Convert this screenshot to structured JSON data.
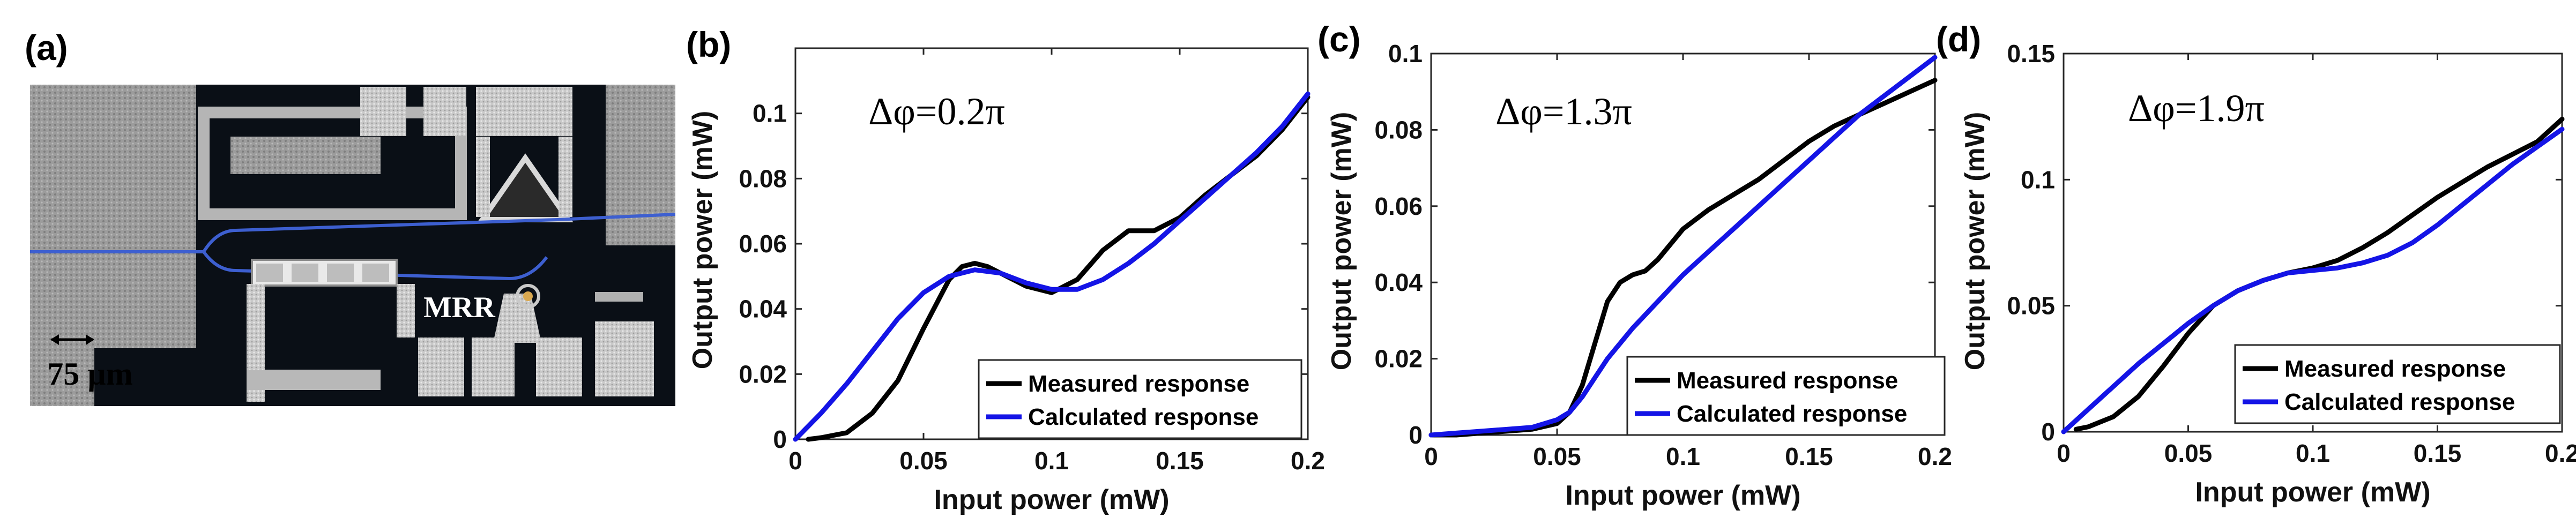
{
  "figure": {
    "panels": [
      {
        "id": "a",
        "label": "(a)",
        "type": "micrograph"
      },
      {
        "id": "b",
        "label": "(b)",
        "type": "chart",
        "chart_index": 0
      },
      {
        "id": "c",
        "label": "(c)",
        "type": "chart",
        "chart_index": 1
      },
      {
        "id": "d",
        "label": "(d)",
        "type": "chart",
        "chart_index": 2
      }
    ],
    "micrograph": {
      "mrr_label": "MRR",
      "scale_bar_label": "75 µm"
    }
  },
  "colors": {
    "measured": "#000000",
    "calculated": "#1414e6",
    "chip_dark": "#0a0f16",
    "chip_metal": "#a8a8a8",
    "waveguide": "#3d5fd0"
  },
  "chart_data": [
    {
      "type": "line",
      "annotation": "Δφ=0.2π",
      "xlabel": "Input power (mW)",
      "ylabel": "Output power (mW)",
      "xlim": [
        0,
        0.2
      ],
      "ylim": [
        0,
        0.12
      ],
      "xticks": [
        0,
        0.05,
        0.1,
        0.15,
        0.2
      ],
      "xtick_labels": [
        "0",
        "0.05",
        "0.1",
        "0.15",
        "0.2"
      ],
      "yticks": [
        0,
        0.02,
        0.04,
        0.06,
        0.08,
        0.1
      ],
      "ytick_labels": [
        "0",
        "0.02",
        "0.04",
        "0.06",
        "0.08",
        "0.1"
      ],
      "legend": "bottom-right",
      "series": [
        {
          "name": "Measured response",
          "color": "#000000",
          "x": [
            0.005,
            0.01,
            0.02,
            0.03,
            0.04,
            0.05,
            0.06,
            0.065,
            0.07,
            0.075,
            0.08,
            0.09,
            0.1,
            0.11,
            0.12,
            0.13,
            0.14,
            0.15,
            0.16,
            0.17,
            0.18,
            0.19,
            0.2
          ],
          "y": [
            0.0,
            0.0005,
            0.002,
            0.008,
            0.018,
            0.034,
            0.049,
            0.053,
            0.054,
            0.053,
            0.051,
            0.047,
            0.045,
            0.049,
            0.058,
            0.064,
            0.064,
            0.068,
            0.075,
            0.081,
            0.087,
            0.095,
            0.105
          ]
        },
        {
          "name": "Calculated response",
          "color": "#1414e6",
          "x": [
            0,
            0.01,
            0.02,
            0.03,
            0.04,
            0.05,
            0.06,
            0.07,
            0.08,
            0.09,
            0.1,
            0.11,
            0.12,
            0.13,
            0.14,
            0.15,
            0.16,
            0.17,
            0.18,
            0.19,
            0.2
          ],
          "y": [
            0.0,
            0.008,
            0.017,
            0.027,
            0.037,
            0.045,
            0.05,
            0.052,
            0.051,
            0.048,
            0.046,
            0.046,
            0.049,
            0.054,
            0.06,
            0.067,
            0.074,
            0.081,
            0.088,
            0.096,
            0.106
          ]
        }
      ]
    },
    {
      "type": "line",
      "annotation": "Δφ=1.3π",
      "xlabel": "Input power (mW)",
      "ylabel": "Output power (mW)",
      "xlim": [
        0,
        0.2
      ],
      "ylim": [
        0,
        0.1
      ],
      "xticks": [
        0,
        0.05,
        0.1,
        0.15,
        0.2
      ],
      "xtick_labels": [
        "0",
        "0.05",
        "0.1",
        "0.15",
        "0.2"
      ],
      "yticks": [
        0,
        0.02,
        0.04,
        0.06,
        0.08,
        0.1
      ],
      "ytick_labels": [
        "0",
        "0.02",
        "0.04",
        "0.06",
        "0.08",
        "0.1"
      ],
      "legend": "bottom-right",
      "series": [
        {
          "name": "Measured response",
          "color": "#000000",
          "x": [
            0,
            0.01,
            0.02,
            0.03,
            0.04,
            0.05,
            0.055,
            0.06,
            0.065,
            0.07,
            0.075,
            0.08,
            0.085,
            0.09,
            0.1,
            0.11,
            0.12,
            0.13,
            0.14,
            0.15,
            0.16,
            0.17,
            0.18,
            0.19,
            0.2
          ],
          "y": [
            0.0,
            0.0,
            0.0005,
            0.001,
            0.0015,
            0.003,
            0.006,
            0.013,
            0.024,
            0.035,
            0.04,
            0.042,
            0.043,
            0.046,
            0.054,
            0.059,
            0.063,
            0.067,
            0.072,
            0.077,
            0.081,
            0.084,
            0.087,
            0.09,
            0.093
          ]
        },
        {
          "name": "Calculated response",
          "color": "#1414e6",
          "x": [
            0,
            0.01,
            0.02,
            0.03,
            0.04,
            0.05,
            0.055,
            0.06,
            0.065,
            0.07,
            0.08,
            0.09,
            0.1,
            0.11,
            0.12,
            0.13,
            0.14,
            0.15,
            0.16,
            0.17,
            0.18,
            0.19,
            0.2
          ],
          "y": [
            0.0,
            0.0005,
            0.001,
            0.0015,
            0.002,
            0.004,
            0.006,
            0.01,
            0.015,
            0.02,
            0.028,
            0.035,
            0.042,
            0.048,
            0.054,
            0.06,
            0.066,
            0.072,
            0.078,
            0.084,
            0.089,
            0.094,
            0.099
          ]
        }
      ]
    },
    {
      "type": "line",
      "annotation": "Δφ=1.9π",
      "xlabel": "Input power (mW)",
      "ylabel": "Output power (mW)",
      "xlim": [
        0,
        0.2
      ],
      "ylim": [
        0,
        0.15
      ],
      "xticks": [
        0,
        0.05,
        0.1,
        0.15,
        0.2
      ],
      "xtick_labels": [
        "0",
        "0.05",
        "0.1",
        "0.15",
        "0.2"
      ],
      "yticks": [
        0,
        0.05,
        0.1,
        0.15
      ],
      "ytick_labels": [
        "0",
        "0.05",
        "0.1",
        "0.15"
      ],
      "legend": "bottom-right",
      "series": [
        {
          "name": "Measured response",
          "color": "#000000",
          "x": [
            0.005,
            0.01,
            0.02,
            0.03,
            0.04,
            0.05,
            0.06,
            0.07,
            0.08,
            0.09,
            0.1,
            0.11,
            0.12,
            0.13,
            0.14,
            0.15,
            0.16,
            0.17,
            0.18,
            0.19,
            0.2
          ],
          "y": [
            0.001,
            0.002,
            0.006,
            0.014,
            0.026,
            0.039,
            0.05,
            0.056,
            0.06,
            0.063,
            0.065,
            0.068,
            0.073,
            0.079,
            0.086,
            0.093,
            0.099,
            0.105,
            0.11,
            0.115,
            0.124
          ]
        },
        {
          "name": "Calculated response",
          "color": "#1414e6",
          "x": [
            0,
            0.01,
            0.02,
            0.03,
            0.04,
            0.05,
            0.06,
            0.07,
            0.08,
            0.09,
            0.1,
            0.11,
            0.12,
            0.13,
            0.14,
            0.15,
            0.16,
            0.17,
            0.18,
            0.19,
            0.2
          ],
          "y": [
            0.0,
            0.009,
            0.018,
            0.027,
            0.035,
            0.043,
            0.05,
            0.056,
            0.06,
            0.063,
            0.064,
            0.065,
            0.067,
            0.07,
            0.075,
            0.082,
            0.09,
            0.098,
            0.106,
            0.113,
            0.12
          ]
        }
      ]
    }
  ]
}
